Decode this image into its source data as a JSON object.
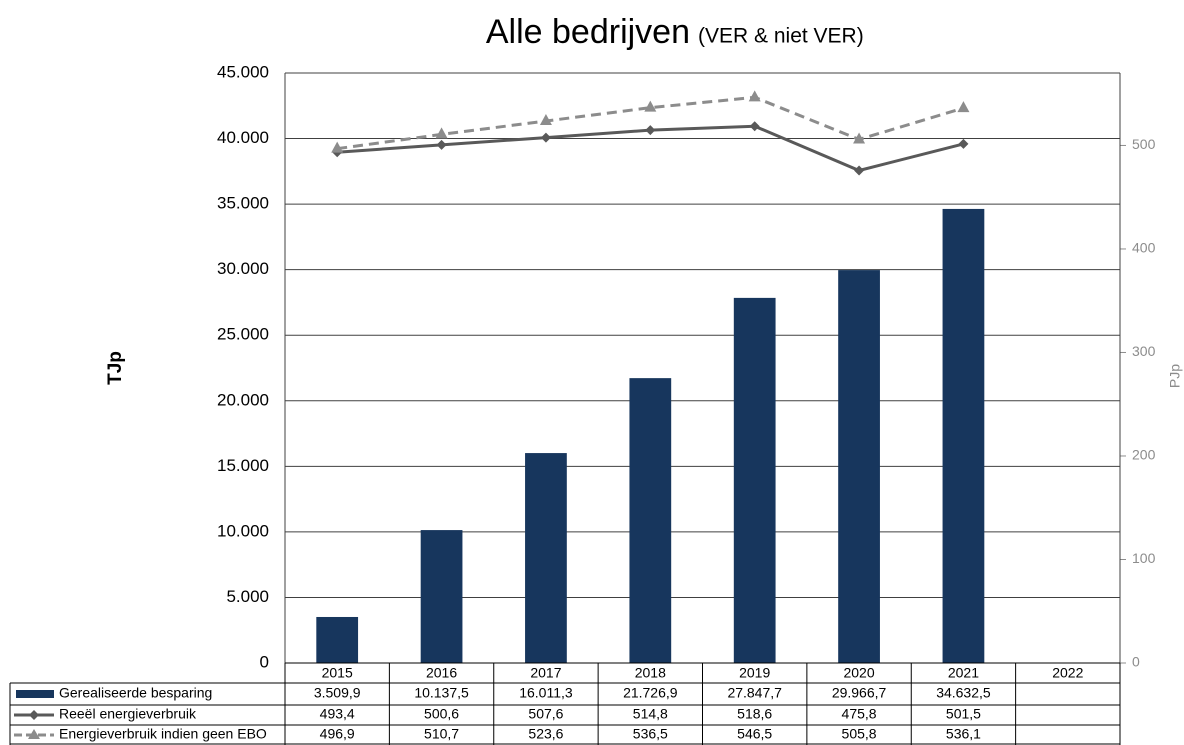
{
  "chart_data": {
    "type": "bar",
    "title": "Alle bedrijven",
    "subtitle": "(VER & niet VER)",
    "y_label": "TJp",
    "y2_label": "PJp",
    "categories": [
      "2015",
      "2016",
      "2017",
      "2018",
      "2019",
      "2020",
      "2021",
      "2022"
    ],
    "ylim": [
      0,
      45000
    ],
    "yticks": [
      0,
      {
        "value": 5000,
        "label": "5.000"
      },
      {
        "value": 10000,
        "label": "10.000"
      },
      {
        "value": 15000,
        "label": "15.000"
      },
      {
        "value": 20000,
        "label": "20.000"
      },
      {
        "value": 25000,
        "label": "25.000"
      },
      {
        "value": 30000,
        "label": "30.000"
      },
      {
        "value": 35000,
        "label": "35.000"
      },
      {
        "value": 40000,
        "label": "40.000"
      },
      {
        "value": 45000,
        "label": "45.000"
      }
    ],
    "y2lim": [
      0,
      570
    ],
    "y2ticks": [
      0,
      100,
      200,
      300,
      400,
      500
    ],
    "grid": true,
    "series": [
      {
        "name": "Gerealiseerde besparing",
        "type": "bar",
        "color": "#17365d",
        "values": [
          3509.9,
          10137.5,
          16011.3,
          21726.9,
          27847.7,
          29966.7,
          34632.5,
          null
        ],
        "value_labels": [
          "3.509,9",
          "10.137,5",
          "16.011,3",
          "21.726,9",
          "27.847,7",
          "29.966,7",
          "34.632,5",
          null
        ]
      },
      {
        "name": "Reeël energieverbruik",
        "type": "line",
        "axis": "y2",
        "color": "#595959",
        "marker": "diamond",
        "dash": false,
        "values": [
          493.4,
          500.6,
          507.6,
          514.8,
          518.6,
          475.8,
          501.5,
          null
        ],
        "value_labels": [
          "493,4",
          "500,6",
          "507,6",
          "514,8",
          "518,6",
          "475,8",
          "501,5",
          null
        ]
      },
      {
        "name": "Energieverbruik indien geen EBO",
        "type": "line",
        "axis": "y2",
        "color": "#8c8c8c",
        "marker": "triangle",
        "dash": true,
        "values": [
          496.9,
          510.7,
          523.6,
          536.5,
          546.5,
          505.8,
          536.1,
          null
        ],
        "value_labels": [
          "496,9",
          "510,7",
          "523,6",
          "536,5",
          "546,5",
          "505,8",
          "536,1",
          null
        ]
      }
    ]
  }
}
